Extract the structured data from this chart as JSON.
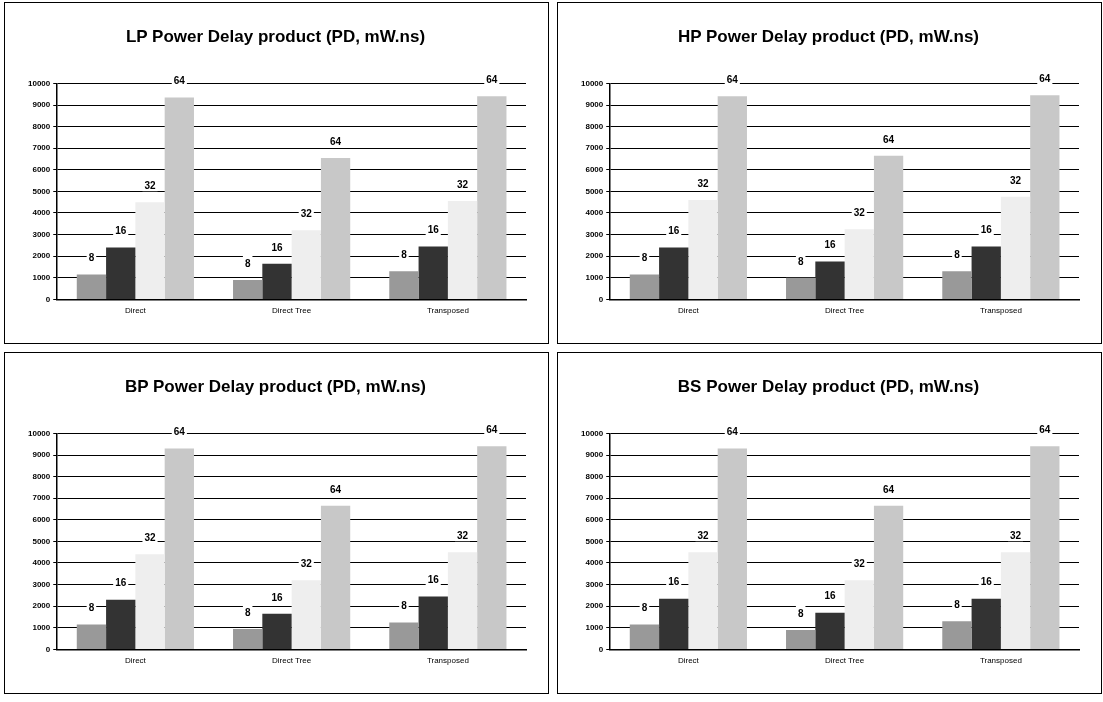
{
  "chart_data": [
    {
      "type": "bar",
      "title": "LP Power Delay product (PD, mW.ns)",
      "categories": [
        "Direct",
        "Direct Tree",
        "Transposed"
      ],
      "ylim": [
        0,
        10000
      ],
      "yticks": [
        0,
        1000,
        2000,
        3000,
        4000,
        5000,
        6000,
        7000,
        8000,
        9000,
        10000
      ],
      "grid": "y",
      "legend": false,
      "series": [
        {
          "name": "8",
          "color": "#999999",
          "values": [
            1150,
            900,
            1300
          ]
        },
        {
          "name": "16",
          "color": "#333333",
          "values": [
            2400,
            1650,
            2450
          ]
        },
        {
          "name": "32",
          "color": "#eeeeee",
          "values": [
            4500,
            3200,
            4550
          ]
        },
        {
          "name": "64",
          "color": "#c8c8c8",
          "values": [
            9350,
            6550,
            9400
          ]
        }
      ]
    },
    {
      "type": "bar",
      "title": "HP Power Delay product (PD, mW.ns)",
      "categories": [
        "Direct",
        "Direct Tree",
        "Transposed"
      ],
      "ylim": [
        0,
        10000
      ],
      "yticks": [
        0,
        1000,
        2000,
        3000,
        4000,
        5000,
        6000,
        7000,
        8000,
        9000,
        10000
      ],
      "grid": "y",
      "legend": false,
      "series": [
        {
          "name": "8",
          "color": "#999999",
          "values": [
            1150,
            1000,
            1300
          ]
        },
        {
          "name": "16",
          "color": "#333333",
          "values": [
            2400,
            1750,
            2450
          ]
        },
        {
          "name": "32",
          "color": "#eeeeee",
          "values": [
            4600,
            3250,
            4750
          ]
        },
        {
          "name": "64",
          "color": "#c8c8c8",
          "values": [
            9400,
            6650,
            9450
          ]
        }
      ]
    },
    {
      "type": "bar",
      "title": "BP Power Delay product (PD, mW.ns)",
      "categories": [
        "Direct",
        "Direct Tree",
        "Transposed"
      ],
      "ylim": [
        0,
        10000
      ],
      "yticks": [
        0,
        1000,
        2000,
        3000,
        4000,
        5000,
        6000,
        7000,
        8000,
        9000,
        10000
      ],
      "grid": "y",
      "legend": false,
      "series": [
        {
          "name": "8",
          "color": "#999999",
          "values": [
            1150,
            950,
            1250
          ]
        },
        {
          "name": "16",
          "color": "#333333",
          "values": [
            2300,
            1650,
            2450
          ]
        },
        {
          "name": "32",
          "color": "#eeeeee",
          "values": [
            4400,
            3200,
            4500
          ]
        },
        {
          "name": "64",
          "color": "#c8c8c8",
          "values": [
            9300,
            6650,
            9400
          ]
        }
      ]
    },
    {
      "type": "bar",
      "title": "BS Power Delay product (PD, mW.ns)",
      "categories": [
        "Direct",
        "Direct Tree",
        "Transposed"
      ],
      "ylim": [
        0,
        10000
      ],
      "yticks": [
        0,
        1000,
        2000,
        3000,
        4000,
        5000,
        6000,
        7000,
        8000,
        9000,
        10000
      ],
      "grid": "y",
      "legend": false,
      "series": [
        {
          "name": "8",
          "color": "#999999",
          "values": [
            1150,
            900,
            1300
          ]
        },
        {
          "name": "16",
          "color": "#333333",
          "values": [
            2350,
            1700,
            2350
          ]
        },
        {
          "name": "32",
          "color": "#eeeeee",
          "values": [
            4500,
            3200,
            4500
          ]
        },
        {
          "name": "64",
          "color": "#c8c8c8",
          "values": [
            9300,
            6650,
            9400
          ]
        }
      ]
    }
  ]
}
